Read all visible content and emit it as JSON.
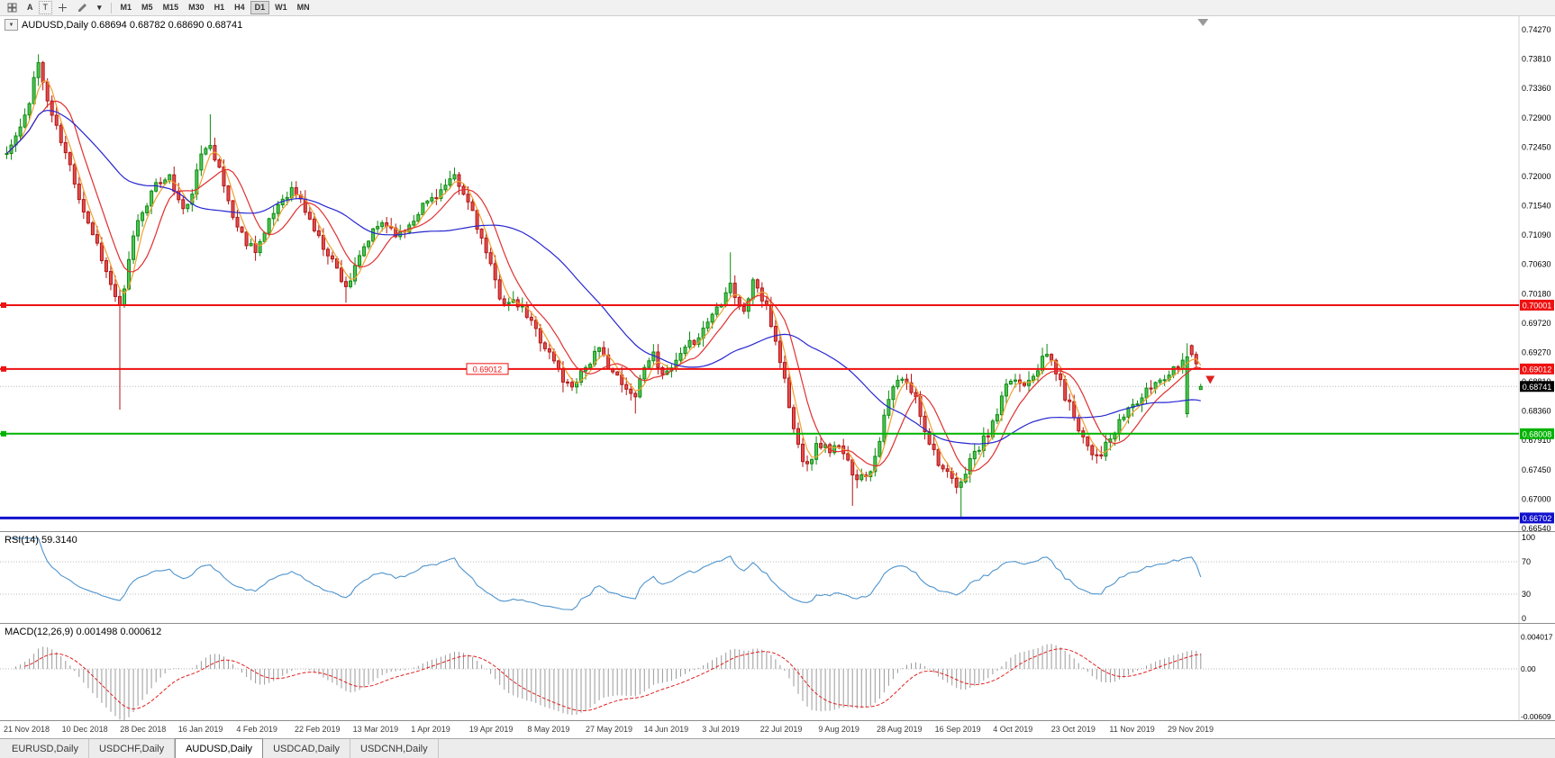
{
  "toolbar": {
    "tools": [
      {
        "name": "chart-grid-icon",
        "kind": "grid"
      },
      {
        "name": "annotation-a-button",
        "kind": "text",
        "glyph": "A"
      },
      {
        "name": "text-label-button",
        "kind": "text",
        "glyph": "T",
        "boxed": true
      },
      {
        "name": "crosshair-icon",
        "kind": "cross"
      },
      {
        "name": "draw-pencil-icon",
        "kind": "pencil"
      },
      {
        "name": "draw-dropdown-icon",
        "kind": "text",
        "glyph": "▾"
      }
    ],
    "timeframes": [
      "M1",
      "M5",
      "M15",
      "M30",
      "H1",
      "H4",
      "D1",
      "W1",
      "MN"
    ],
    "active_timeframe": "D1"
  },
  "labels": {
    "dropdown_glyph": "▼",
    "chart_title": "AUDUSD,Daily 0.68694 0.68782 0.68690 0.68741",
    "rsi_title": "RSI(14) 59.3140",
    "macd_title": "MACD(12,26,9) 0.001498 0.000612"
  },
  "price_axis_ticks": [
    "0.74270",
    "0.73810",
    "0.73360",
    "0.72900",
    "0.72450",
    "0.72000",
    "0.71540",
    "0.71090",
    "0.70630",
    "0.70180",
    "0.69720",
    "0.69270",
    "0.68810",
    "0.68360",
    "0.67910",
    "0.67450",
    "0.67000",
    "0.66540"
  ],
  "levels": [
    {
      "name": "resistance-line-070001",
      "price": 0.70001,
      "tag": "0.70001",
      "color": "#ee1111",
      "width": 2,
      "handle": true
    },
    {
      "name": "resistance-line-069012",
      "price": 0.69012,
      "tag": "0.69012",
      "color": "#ee1111",
      "width": 2,
      "handle": true,
      "inline_label": "0.69012"
    },
    {
      "name": "support-line-068008",
      "price": 0.68008,
      "tag": "0.68008",
      "color": "#00b300",
      "width": 2,
      "handle": true
    },
    {
      "name": "support-line-066702",
      "price": 0.66702,
      "tag": "0.66702",
      "color": "#1111cc",
      "width": 3,
      "handle": false
    }
  ],
  "current_price": {
    "value": 0.68741,
    "tag": "0.68741"
  },
  "rsi_axis": [
    "100",
    "70",
    "30",
    "0"
  ],
  "rsi_levels": [
    70,
    30
  ],
  "macd_axis": {
    "top": "0.004017",
    "zero": "0.00",
    "bottom": "-0.00609"
  },
  "date_axis": [
    "21 Nov 2018",
    "10 Dec 2018",
    "28 Dec 2018",
    "16 Jan 2019",
    "4 Feb 2019",
    "22 Feb 2019",
    "13 Mar 2019",
    "1 Apr 2019",
    "19 Apr 2019",
    "8 May 2019",
    "27 May 2019",
    "14 Jun 2019",
    "3 Jul 2019",
    "22 Jul 2019",
    "9 Aug 2019",
    "28 Aug 2019",
    "16 Sep 2019",
    "4 Oct 2019",
    "23 Oct 2019",
    "11 Nov 2019",
    "29 Nov 2019"
  ],
  "tabs": [
    "EURUSD,Daily",
    "USDCHF,Daily",
    "AUDUSD,Daily",
    "USDCAD,Daily",
    "USDCNH,Daily"
  ],
  "active_tab_index": 2,
  "colors": {
    "up_fill": "#52c756",
    "up_stroke": "#0c8a10",
    "down_fill": "#e65050",
    "down_stroke": "#b01414",
    "rsi": "#4f94cd",
    "macd_hist": "#9a9a9a",
    "macd_signal": "#e02020",
    "cur_tag_bg": "#000000",
    "cur_line": "#b8b8b8",
    "axis_sep": "#d0d0d0",
    "dotted_level": "#b8b8b8"
  },
  "chart_data": {
    "type": "candlestick",
    "symbol": "AUDUSD",
    "timeframe": "Daily",
    "y_axis_range": [
      0.6654,
      0.7427
    ],
    "x_range_dates": [
      "21 Nov 2018",
      "6 Dec 2019"
    ],
    "candle_count": 265,
    "last_candle": {
      "open": 0.68694,
      "high": 0.68782,
      "low": 0.6869,
      "close": 0.68741
    },
    "noise_seed": 11,
    "noise_amp": 0.0016,
    "close_waypoints": [
      [
        0.0,
        0.7235
      ],
      [
        0.008,
        0.7262
      ],
      [
        0.018,
        0.73
      ],
      [
        0.025,
        0.7388
      ],
      [
        0.032,
        0.733
      ],
      [
        0.04,
        0.7282
      ],
      [
        0.048,
        0.724
      ],
      [
        0.055,
        0.7205
      ],
      [
        0.062,
        0.716
      ],
      [
        0.07,
        0.712
      ],
      [
        0.078,
        0.7085
      ],
      [
        0.085,
        0.704
      ],
      [
        0.092,
        0.701
      ],
      [
        0.096,
        0.6988
      ],
      [
        0.1,
        0.704
      ],
      [
        0.106,
        0.711
      ],
      [
        0.113,
        0.7145
      ],
      [
        0.12,
        0.717
      ],
      [
        0.128,
        0.719
      ],
      [
        0.135,
        0.7205
      ],
      [
        0.142,
        0.717
      ],
      [
        0.15,
        0.714
      ],
      [
        0.157,
        0.719
      ],
      [
        0.163,
        0.723
      ],
      [
        0.17,
        0.7258
      ],
      [
        0.177,
        0.7215
      ],
      [
        0.185,
        0.7165
      ],
      [
        0.192,
        0.7125
      ],
      [
        0.2,
        0.71
      ],
      [
        0.208,
        0.7088
      ],
      [
        0.216,
        0.711
      ],
      [
        0.225,
        0.715
      ],
      [
        0.233,
        0.7172
      ],
      [
        0.24,
        0.718
      ],
      [
        0.248,
        0.7155
      ],
      [
        0.255,
        0.7128
      ],
      [
        0.262,
        0.71
      ],
      [
        0.27,
        0.708
      ],
      [
        0.278,
        0.705
      ],
      [
        0.285,
        0.7028
      ],
      [
        0.293,
        0.706
      ],
      [
        0.3,
        0.7092
      ],
      [
        0.308,
        0.7115
      ],
      [
        0.315,
        0.713
      ],
      [
        0.323,
        0.7118
      ],
      [
        0.33,
        0.7108
      ],
      [
        0.338,
        0.7128
      ],
      [
        0.345,
        0.7148
      ],
      [
        0.353,
        0.7162
      ],
      [
        0.36,
        0.7172
      ],
      [
        0.368,
        0.7185
      ],
      [
        0.375,
        0.7195
      ],
      [
        0.382,
        0.7172
      ],
      [
        0.39,
        0.7148
      ],
      [
        0.398,
        0.71
      ],
      [
        0.405,
        0.7058
      ],
      [
        0.413,
        0.7015
      ],
      [
        0.42,
        0.7002
      ],
      [
        0.428,
        0.7
      ],
      [
        0.435,
        0.6985
      ],
      [
        0.443,
        0.6962
      ],
      [
        0.45,
        0.6938
      ],
      [
        0.458,
        0.6915
      ],
      [
        0.466,
        0.6885
      ],
      [
        0.472,
        0.6872
      ],
      [
        0.48,
        0.6895
      ],
      [
        0.488,
        0.6912
      ],
      [
        0.495,
        0.693
      ],
      [
        0.503,
        0.6912
      ],
      [
        0.51,
        0.689
      ],
      [
        0.518,
        0.6868
      ],
      [
        0.525,
        0.6858
      ],
      [
        0.532,
        0.6895
      ],
      [
        0.54,
        0.6928
      ],
      [
        0.547,
        0.6905
      ],
      [
        0.553,
        0.689
      ],
      [
        0.56,
        0.691
      ],
      [
        0.568,
        0.6928
      ],
      [
        0.575,
        0.6945
      ],
      [
        0.583,
        0.6962
      ],
      [
        0.59,
        0.6985
      ],
      [
        0.598,
        0.7005
      ],
      [
        0.605,
        0.704
      ],
      [
        0.612,
        0.7005
      ],
      [
        0.618,
        0.6985
      ],
      [
        0.625,
        0.7042
      ],
      [
        0.63,
        0.702
      ],
      [
        0.638,
        0.6985
      ],
      [
        0.645,
        0.6938
      ],
      [
        0.652,
        0.688
      ],
      [
        0.658,
        0.6815
      ],
      [
        0.665,
        0.6768
      ],
      [
        0.672,
        0.6758
      ],
      [
        0.68,
        0.6788
      ],
      [
        0.688,
        0.6775
      ],
      [
        0.695,
        0.6782
      ],
      [
        0.703,
        0.676
      ],
      [
        0.71,
        0.6738
      ],
      [
        0.717,
        0.6732
      ],
      [
        0.725,
        0.6752
      ],
      [
        0.732,
        0.6802
      ],
      [
        0.74,
        0.6862
      ],
      [
        0.747,
        0.6885
      ],
      [
        0.755,
        0.6875
      ],
      [
        0.762,
        0.6852
      ],
      [
        0.77,
        0.6802
      ],
      [
        0.778,
        0.6768
      ],
      [
        0.785,
        0.6742
      ],
      [
        0.792,
        0.6725
      ],
      [
        0.798,
        0.6712
      ],
      [
        0.805,
        0.6758
      ],
      [
        0.812,
        0.6772
      ],
      [
        0.82,
        0.6795
      ],
      [
        0.828,
        0.6822
      ],
      [
        0.835,
        0.6862
      ],
      [
        0.842,
        0.6888
      ],
      [
        0.85,
        0.6878
      ],
      [
        0.858,
        0.6892
      ],
      [
        0.865,
        0.6908
      ],
      [
        0.872,
        0.6925
      ],
      [
        0.878,
        0.6902
      ],
      [
        0.885,
        0.6865
      ],
      [
        0.892,
        0.6838
      ],
      [
        0.9,
        0.6802
      ],
      [
        0.908,
        0.6775
      ],
      [
        0.915,
        0.6768
      ],
      [
        0.922,
        0.6785
      ],
      [
        0.93,
        0.6808
      ],
      [
        0.938,
        0.6838
      ],
      [
        0.945,
        0.6848
      ],
      [
        0.952,
        0.6858
      ],
      [
        0.96,
        0.6878
      ],
      [
        0.968,
        0.6888
      ],
      [
        0.975,
        0.6898
      ],
      [
        0.982,
        0.6912
      ],
      [
        0.99,
        0.6938
      ],
      [
        0.996,
        0.6916
      ],
      [
        1.0,
        0.68741
      ]
    ],
    "overrides": [
      {
        "t": 0.096,
        "low": 0.6838
      },
      {
        "t": 0.17,
        "high": 0.7296
      },
      {
        "t": 0.285,
        "low": 0.7004
      },
      {
        "t": 0.375,
        "high": 0.7206
      },
      {
        "t": 0.466,
        "low": 0.6865
      },
      {
        "t": 0.525,
        "low": 0.6832
      },
      {
        "t": 0.605,
        "high": 0.7082
      },
      {
        "t": 0.71,
        "low": 0.6689
      },
      {
        "t": 0.798,
        "low": 0.6671
      },
      {
        "t": 0.872,
        "high": 0.694
      },
      {
        "t": 0.99,
        "open": 0.6832,
        "high": 0.6941,
        "low": 0.6826,
        "close": 0.692
      },
      {
        "t": 1.0,
        "open": 0.68694,
        "high": 0.68782,
        "low": 0.6869,
        "close": 0.68741
      }
    ],
    "moving_averages": [
      {
        "period": 4,
        "color": "#f0a030"
      },
      {
        "period": 9,
        "color": "#e03030"
      },
      {
        "period": 34,
        "color": "#2626d0"
      }
    ],
    "indicators": [
      {
        "name": "RSI",
        "period": 14,
        "current": 59.314
      },
      {
        "name": "MACD",
        "fast": 12,
        "slow": 26,
        "signal": 9,
        "current_macd": 0.001498,
        "current_signal": 0.000612
      }
    ],
    "arrow_marker": {
      "price": 0.6885
    }
  }
}
